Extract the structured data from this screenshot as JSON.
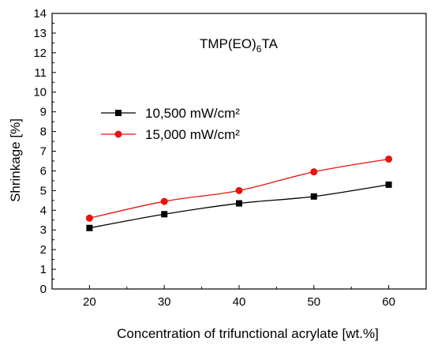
{
  "chart_data": {
    "type": "line",
    "x": [
      20,
      30,
      40,
      50,
      60
    ],
    "series": [
      {
        "name": "10,500 mW/cm²",
        "values": [
          3.1,
          3.8,
          4.35,
          4.7,
          5.3
        ],
        "color": "#000000",
        "marker": "square"
      },
      {
        "name": "15,000 mW/cm²",
        "values": [
          3.6,
          4.45,
          5.0,
          5.95,
          6.6
        ],
        "color": "#e8130f",
        "marker": "circle"
      }
    ],
    "xlabel": "Concentration of trifunctional acrylate [wt.%]",
    "ylabel": "Shrinkage [%]",
    "xlim": [
      15,
      65
    ],
    "ylim": [
      0,
      14
    ],
    "x_ticks": [
      20,
      30,
      40,
      50,
      60
    ],
    "y_ticks": [
      0,
      1,
      2,
      3,
      4,
      5,
      6,
      7,
      8,
      9,
      10,
      11,
      12,
      13,
      14
    ],
    "annotation": {
      "base": "TMP(EO)",
      "sub": "6",
      "tail": "TA"
    },
    "grid": false,
    "legend_position": "upper-left"
  }
}
